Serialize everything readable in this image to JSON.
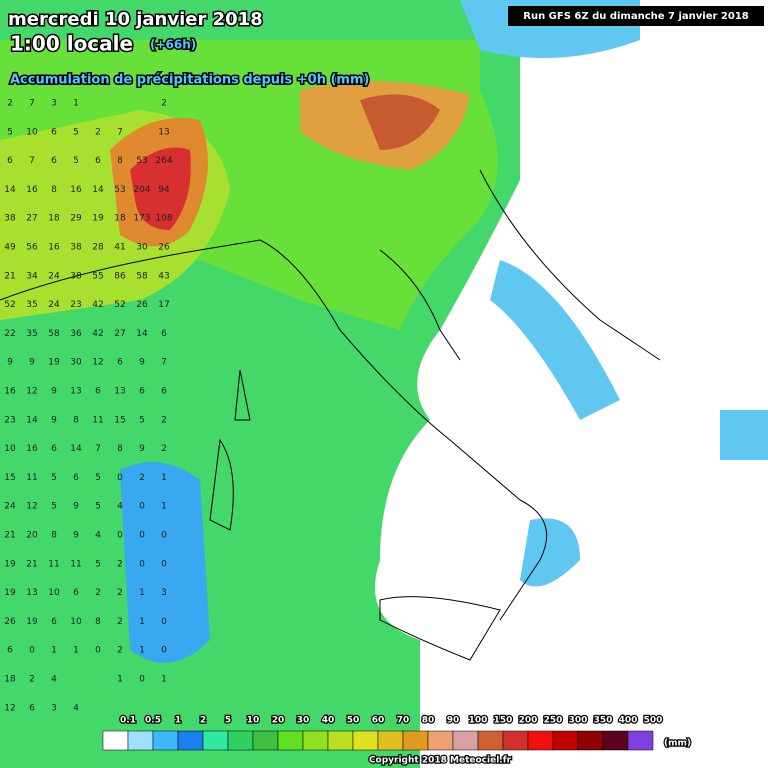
{
  "header": {
    "date": "mercredi 10 janvier 2018",
    "time": "1:00 locale",
    "lead": "(+66h)",
    "field": "Accumulation de précipitations depuis +0h (mm)",
    "run": "Run GFS 6Z du dimanche 7 janvier 2018"
  },
  "grid_values": [
    [
      2,
      7,
      3,
      1,
      null,
      null,
      null,
      2
    ],
    [
      5,
      10,
      6,
      5,
      2,
      7,
      null,
      13
    ],
    [
      6,
      7,
      6,
      5,
      6,
      8,
      53,
      264
    ],
    [
      14,
      16,
      8,
      16,
      14,
      53,
      204,
      94
    ],
    [
      38,
      27,
      18,
      29,
      19,
      18,
      173,
      108
    ],
    [
      49,
      56,
      16,
      38,
      28,
      41,
      30,
      26
    ],
    [
      21,
      34,
      24,
      38,
      55,
      86,
      58,
      43
    ],
    [
      52,
      35,
      24,
      23,
      42,
      52,
      26,
      17
    ],
    [
      22,
      35,
      58,
      36,
      42,
      27,
      14,
      6
    ],
    [
      9,
      9,
      19,
      30,
      12,
      6,
      9,
      7
    ],
    [
      16,
      12,
      9,
      13,
      6,
      13,
      6,
      6
    ],
    [
      23,
      14,
      9,
      8,
      11,
      15,
      5,
      2
    ],
    [
      10,
      16,
      6,
      14,
      7,
      8,
      9,
      2
    ],
    [
      15,
      11,
      5,
      6,
      5,
      0,
      2,
      1
    ],
    [
      24,
      12,
      5,
      9,
      5,
      4,
      0,
      1
    ],
    [
      21,
      20,
      8,
      9,
      4,
      0,
      0,
      0
    ],
    [
      19,
      21,
      11,
      11,
      5,
      2,
      0,
      0
    ],
    [
      19,
      13,
      10,
      6,
      2,
      2,
      1,
      3
    ],
    [
      26,
      19,
      6,
      10,
      8,
      2,
      1,
      0
    ],
    [
      6,
      0,
      1,
      1,
      0,
      2,
      1,
      0
    ],
    [
      18,
      2,
      4,
      null,
      null,
      1,
      0,
      1
    ],
    [
      12,
      6,
      3,
      4,
      null,
      null,
      null,
      null
    ]
  ],
  "legend": {
    "levels": [
      0.1,
      0.5,
      1,
      2,
      5,
      10,
      20,
      30,
      40,
      50,
      60,
      70,
      80,
      90,
      100,
      150,
      200,
      250,
      300,
      350,
      400,
      500
    ],
    "colors": [
      "#ffffff",
      "#a0e0ff",
      "#40b8ff",
      "#1a80f0",
      "#30e8a0",
      "#30d060",
      "#40c040",
      "#60e020",
      "#90e020",
      "#b8e020",
      "#e0e020",
      "#e0c020",
      "#e09a20",
      "#f0a070",
      "#d8a0a0",
      "#d06030",
      "#d03030",
      "#f01010",
      "#c00000",
      "#900000",
      "#600020",
      "#8040e0"
    ],
    "unit": "(mm)"
  },
  "footer": {
    "copyright": "Copyright 2018 Meteociel.fr"
  }
}
